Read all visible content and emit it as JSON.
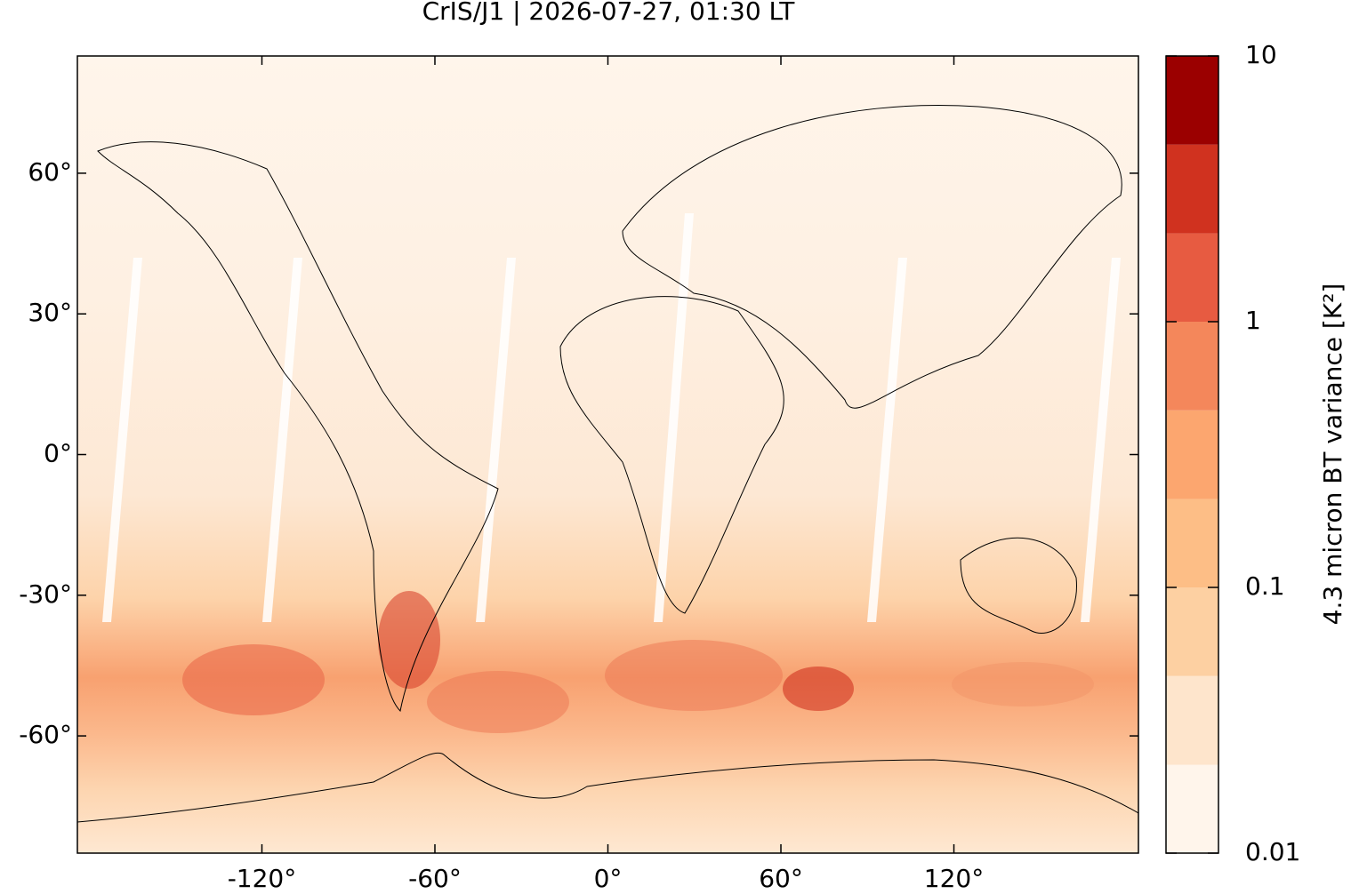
{
  "chart_data": {
    "type": "map",
    "title": "CrIS/J1 | 2026-07-27, 01:30 LT",
    "xlim": [
      -184,
      184
    ],
    "xticks": [
      {
        "value": -120,
        "label": "-120°"
      },
      {
        "value": -60,
        "label": "-60°"
      },
      {
        "value": 0,
        "label": "0°"
      },
      {
        "value": 60,
        "label": "60°"
      },
      {
        "value": 120,
        "label": "120°"
      }
    ],
    "ylim": [
      -85,
      85
    ],
    "yticks": [
      {
        "value": -60,
        "label": "-60°"
      },
      {
        "value": -30,
        "label": "-30°"
      },
      {
        "value": 0,
        "label": "0°"
      },
      {
        "value": 30,
        "label": "30°"
      },
      {
        "value": 60,
        "label": "60°"
      }
    ],
    "colorbar": {
      "label": "4.3 micron BT variance [K²]",
      "log_scale": true,
      "lim": [
        0.01,
        10
      ],
      "ticks": [
        0.01,
        0.1,
        1,
        10
      ],
      "levels": [
        0.01,
        0.0215,
        0.0464,
        0.1,
        0.215,
        0.464,
        1,
        2.15,
        4.64,
        10
      ],
      "colors": [
        "#fff5eb",
        "#fee5cc",
        "#fdd0a2",
        "#fdbe86",
        "#fca66f",
        "#f4875b",
        "#e75b41",
        "#d0321f",
        "#9b0000"
      ]
    }
  }
}
